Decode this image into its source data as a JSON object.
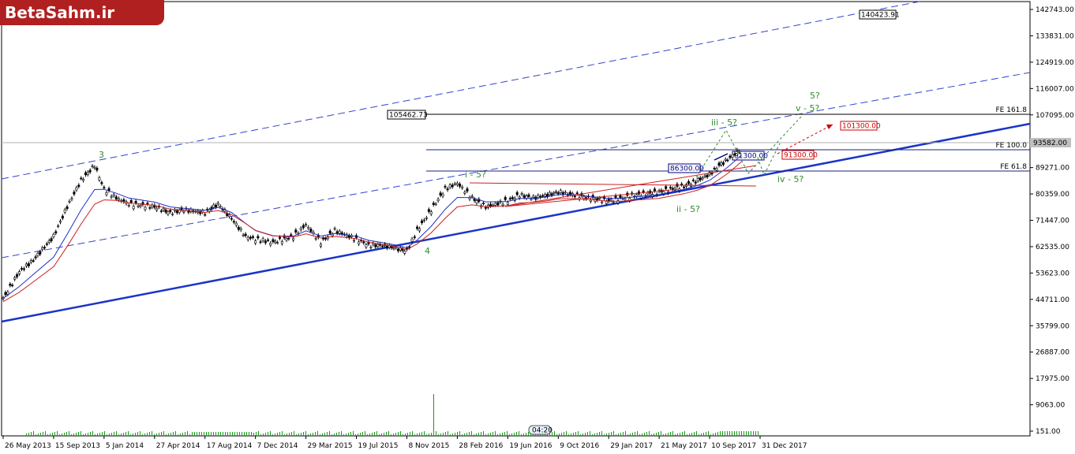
{
  "logo_text": "BetaSahm.ir",
  "chart_data": {
    "type": "candlestick",
    "title": "",
    "xlabel": "",
    "ylabel": "",
    "y_ticks": [
      151.0,
      9063.0,
      17975.0,
      26887.0,
      35799.0,
      44711.0,
      53623.0,
      62535.0,
      71447.0,
      80359.0,
      89271.0,
      98183.0,
      107095.0,
      116007.0,
      124919.0,
      133831.0,
      142743.0
    ],
    "y_tick_labels": [
      "151.00",
      "9063.00",
      "17975.00",
      "26887.00",
      "35799.00",
      "44711.00",
      "53623.00",
      "62535.00",
      "71447.00",
      "80359.00",
      "89271.00",
      "98183.00",
      "107095.00",
      "116007.00",
      "124919.00",
      "133831.00",
      "142743.00"
    ],
    "ylim": [
      151,
      142743
    ],
    "x_tick_labels": [
      "26 May 2013",
      "15 Sep 2013",
      "5 Jan 2014",
      "27 Apr 2014",
      "17 Aug 2014",
      "7 Dec 2014",
      "29 Mar 2015",
      "19 Jul 2015",
      "8 Nov 2015",
      "28 Feb 2016",
      "19 Jun 2016",
      "9 Oct 2016",
      "29 Jan 2017",
      "21 May 2017",
      "10 Sep 2017",
      "31 Dec 2017"
    ],
    "current_price_label": "93582.00",
    "price_series": {
      "name": "Price",
      "x": [
        "2013-05-26",
        "2013-07-01",
        "2013-08-01",
        "2013-09-15",
        "2013-10-15",
        "2013-11-15",
        "2013-12-15",
        "2014-01-05",
        "2014-02-01",
        "2014-03-01",
        "2014-04-27",
        "2014-06-01",
        "2014-07-01",
        "2014-08-17",
        "2014-09-15",
        "2014-10-15",
        "2014-11-15",
        "2014-12-07",
        "2015-01-15",
        "2015-03-01",
        "2015-03-29",
        "2015-05-01",
        "2015-06-01",
        "2015-07-19",
        "2015-08-15",
        "2015-09-15",
        "2015-10-15",
        "2015-11-08",
        "2015-12-01",
        "2016-01-01",
        "2016-02-01",
        "2016-02-28",
        "2016-04-01",
        "2016-05-01",
        "2016-06-19",
        "2016-07-15",
        "2016-08-15",
        "2016-09-15",
        "2016-10-09",
        "2016-11-15",
        "2016-12-15",
        "2017-01-29",
        "2017-03-01",
        "2017-04-01",
        "2017-05-21",
        "2017-06-15",
        "2017-07-15",
        "2017-08-15",
        "2017-09-10",
        "2017-10-01",
        "2017-10-20",
        "2017-11-05",
        "2017-11-20"
      ],
      "values": [
        45000,
        54000,
        58000,
        66000,
        76000,
        85000,
        90000,
        82000,
        79000,
        77000,
        76000,
        74000,
        75000,
        74000,
        77000,
        72000,
        66000,
        65000,
        64000,
        66000,
        70000,
        64000,
        68000,
        65000,
        63000,
        63000,
        62000,
        61000,
        68000,
        75000,
        82000,
        84000,
        79000,
        76000,
        78000,
        80000,
        79000,
        80000,
        81000,
        80000,
        79000,
        78000,
        79000,
        80000,
        81000,
        82000,
        83000,
        85000,
        87000,
        90000,
        92000,
        94000,
        96000
      ]
    },
    "horizontal_levels": [
      {
        "name": "FE 161.8",
        "value": 105462.73,
        "label": "FE 161.8",
        "price_label": "105462.73"
      },
      {
        "name": "FE 100.0",
        "value": 92100,
        "label": "FE 100.0"
      },
      {
        "name": "FE 61.8",
        "value": 85500,
        "label": "FE 61.8"
      }
    ],
    "price_boxes": [
      {
        "text": "140423.91",
        "color": "#000000"
      },
      {
        "text": "86300.00",
        "color": "#000080"
      },
      {
        "text": "91300.00",
        "color": "#000080"
      },
      {
        "text": "91300.00",
        "color": "#cc0000"
      },
      {
        "text": "101300.00",
        "color": "#cc0000"
      }
    ],
    "wave_labels": [
      "3",
      "4",
      "i - 5?",
      "ii - 5?",
      "iii - 5?",
      "iv - 5?",
      "v - 5?",
      "5?"
    ],
    "volume_label": "04:20",
    "colors": {
      "trendline": "#1a35c8",
      "channel": "#3344cc",
      "ma_fast": "#2030c0",
      "ma_slow": "#cc2020",
      "wave": "#2e8b2e",
      "volume": "#1a9a1a",
      "fe_line": "#1a237e"
    }
  }
}
